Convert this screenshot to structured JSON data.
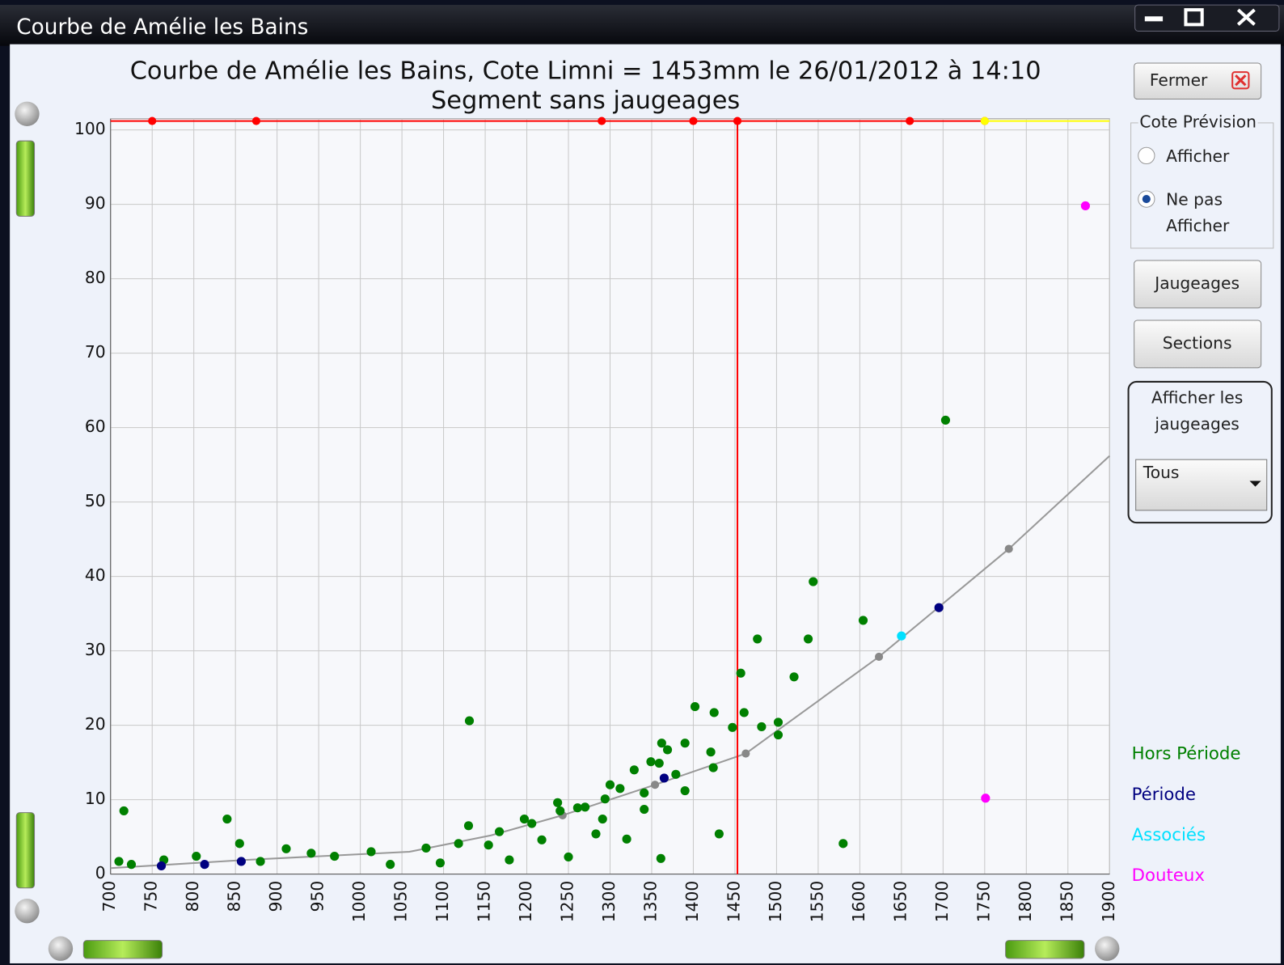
{
  "window": {
    "title": "Courbe de Amélie les Bains"
  },
  "chart_data": {
    "type": "scatter",
    "title": "Courbe de Amélie les Bains, Cote Limni = 1453mm le 26/01/2012 à 14:10",
    "subtitle": "Segment sans jaugeages",
    "xlim": [
      700,
      1900
    ],
    "ylim": [
      0,
      101.5
    ],
    "xticks": [
      700,
      750,
      800,
      850,
      900,
      950,
      1000,
      1050,
      1100,
      1150,
      1200,
      1250,
      1300,
      1350,
      1400,
      1450,
      1500,
      1550,
      1600,
      1650,
      1700,
      1750,
      1800,
      1850,
      1900
    ],
    "yticks": [
      0,
      10,
      20,
      30,
      40,
      50,
      60,
      70,
      80,
      90,
      100
    ],
    "grid": true,
    "series": [
      {
        "name": "Hors Période",
        "color": "#008000",
        "x": [
          716,
          840,
          855,
          1131,
          1130,
          1362,
          1402,
          1425,
          1457,
          1461,
          1447,
          1477,
          1482,
          1502,
          1502,
          1521,
          1538,
          1544,
          1604,
          1703,
          1580,
          1431,
          1361,
          1390,
          1390,
          1421,
          1424,
          1329,
          1341,
          1341,
          1320,
          1300,
          1312,
          1294,
          1291,
          1283,
          1261,
          1237,
          1250,
          1218,
          1197,
          1179,
          1154,
          1096,
          1036,
          911,
          941,
          803,
          764,
          725,
          710,
          880,
          969,
          1013,
          1079,
          1118,
          1167,
          1206,
          1240,
          1270,
          1349,
          1369,
          1379,
          1359
        ],
        "y": [
          8.5,
          7.4,
          4.1,
          20.6,
          6.5,
          17.6,
          22.5,
          21.7,
          27,
          21.7,
          19.7,
          31.6,
          19.8,
          20.4,
          18.7,
          26.5,
          31.6,
          39.3,
          34.1,
          61,
          4.1,
          5.4,
          2.1,
          11.2,
          17.6,
          16.4,
          14.3,
          14,
          10.9,
          8.7,
          4.7,
          12,
          11.5,
          10.1,
          7.4,
          5.4,
          8.9,
          9.6,
          2.3,
          4.6,
          7.4,
          1.9,
          3.9,
          1.5,
          1.3,
          3.4,
          2.8,
          2.4,
          1.9,
          1.3,
          1.7,
          1.7,
          2.4,
          3,
          3.5,
          4.1,
          5.7,
          6.8,
          8.5,
          9,
          15.1,
          16.7,
          13.4,
          14.9
        ]
      },
      {
        "name": "Période",
        "color": "#000080",
        "x": [
          761,
          813,
          857,
          1365,
          1695
        ],
        "y": [
          1.1,
          1.3,
          1.7,
          12.9,
          35.8
        ]
      },
      {
        "name": "Associés",
        "color": "#00e0ff",
        "x": [
          1650
        ],
        "y": [
          32
        ]
      },
      {
        "name": "Douteux",
        "color": "#ff00ff",
        "x": [
          1871,
          1751
        ],
        "y": [
          89.8,
          10.2
        ]
      }
    ],
    "curve": {
      "color": "#999999",
      "x": [
        700,
        862,
        1059,
        1157,
        1243,
        1354,
        1463,
        1623,
        1779,
        1900
      ],
      "y": [
        0.8,
        1.9,
        3,
        5.2,
        7.9,
        12,
        16.2,
        29.2,
        43.7,
        56.2
      ]
    },
    "cote": {
      "x": 1453,
      "color": "#ff0000"
    },
    "limit_y": 101.2,
    "limit_segments": [
      {
        "color": "#ff0000",
        "x": [
          700,
          750,
          875,
          1290,
          1400,
          1453,
          1660,
          1750
        ]
      },
      {
        "color": "#ffff00",
        "x": [
          1750,
          1900
        ]
      }
    ]
  },
  "controls": {
    "close": "Fermer",
    "forecast_group": "Cote Prévision",
    "show": "Afficher",
    "hide": [
      "Ne pas",
      "Afficher"
    ],
    "gaugings": "Jaugeages",
    "sections": "Sections",
    "gauging_group": [
      "Afficher les",
      "jaugeages"
    ],
    "filter": "Tous"
  }
}
